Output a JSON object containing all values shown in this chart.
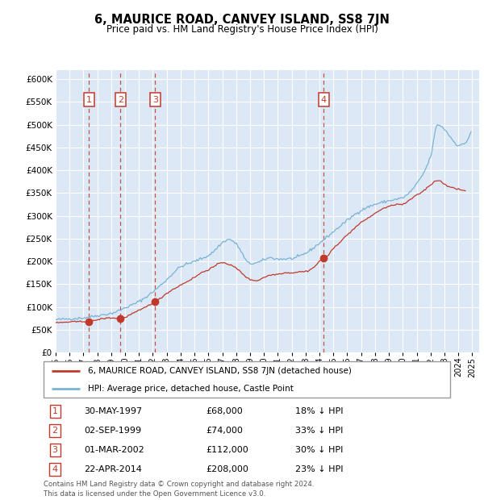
{
  "title": "6, MAURICE ROAD, CANVEY ISLAND, SS8 7JN",
  "subtitle": "Price paid vs. HM Land Registry's House Price Index (HPI)",
  "footer": "Contains HM Land Registry data © Crown copyright and database right 2024.\nThis data is licensed under the Open Government Licence v3.0.",
  "legend_line1": "6, MAURICE ROAD, CANVEY ISLAND, SS8 7JN (detached house)",
  "legend_line2": "HPI: Average price, detached house, Castle Point",
  "transactions": [
    {
      "num": 1,
      "date": "30-MAY-1997",
      "price": 68000,
      "pct": "18% ↓ HPI",
      "year": 1997.41
    },
    {
      "num": 2,
      "date": "02-SEP-1999",
      "price": 74000,
      "pct": "33% ↓ HPI",
      "year": 1999.67
    },
    {
      "num": 3,
      "date": "01-MAR-2002",
      "price": 112000,
      "pct": "30% ↓ HPI",
      "year": 2002.17
    },
    {
      "num": 4,
      "date": "22-APR-2014",
      "price": 208000,
      "pct": "23% ↓ HPI",
      "year": 2014.31
    }
  ],
  "hpi_color": "#7ab3d4",
  "price_color": "#c0392b",
  "marker_color": "#c0392b",
  "vline_color": "#c0392b",
  "box_color": "#c0392b",
  "bg_color": "#dce8f5",
  "grid_color": "#ffffff",
  "ylim_min": 0,
  "ylim_max": 620000,
  "xlim_min": 1995,
  "xlim_max": 2025.5,
  "yticks": [
    0,
    50000,
    100000,
    150000,
    200000,
    250000,
    300000,
    350000,
    400000,
    450000,
    500000,
    550000,
    600000
  ],
  "xticks": [
    1995,
    1996,
    1997,
    1998,
    1999,
    2000,
    2001,
    2002,
    2003,
    2004,
    2005,
    2006,
    2007,
    2008,
    2009,
    2010,
    2011,
    2012,
    2013,
    2014,
    2015,
    2016,
    2017,
    2018,
    2019,
    2020,
    2021,
    2022,
    2023,
    2024,
    2025
  ]
}
